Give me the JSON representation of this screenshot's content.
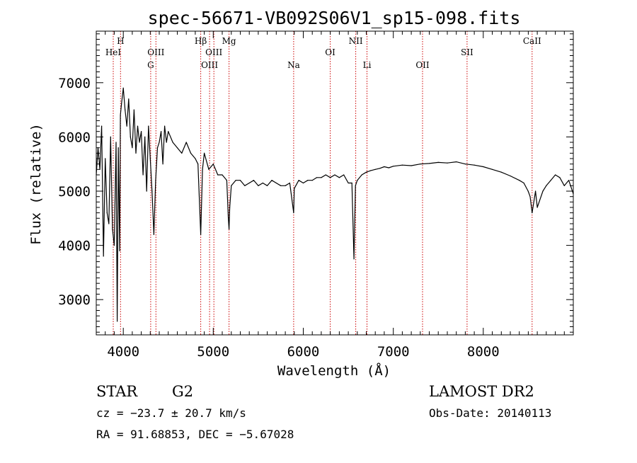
{
  "chart_data": {
    "type": "line",
    "title": "spec-56671-VB092S06V1_sp15-098.fits",
    "xlabel": "Wavelength (Å)",
    "ylabel": "Flux (relative)",
    "xlim": [
      3700,
      9000
    ],
    "ylim": [
      2350,
      7950
    ],
    "xticks": [
      4000,
      5000,
      6000,
      7000,
      8000
    ],
    "yticks": [
      3000,
      4000,
      5000,
      6000,
      7000
    ],
    "xtick_labels": [
      "4000",
      "5000",
      "6000",
      "7000",
      "8000"
    ],
    "ytick_labels": [
      "3000",
      "4000",
      "5000",
      "6000",
      "7000"
    ],
    "grid": false,
    "spectral_lines": [
      {
        "label": "HeI",
        "wavelength": 3889,
        "row": 2
      },
      {
        "label": "H",
        "wavelength": 3970,
        "row": 1
      },
      {
        "label": "G",
        "wavelength": 4305,
        "row": 3
      },
      {
        "label": "OIII",
        "wavelength": 4363,
        "row": 2
      },
      {
        "label": "Hβ",
        "wavelength": 4861,
        "row": 1
      },
      {
        "label": "OIII",
        "wavelength": 4959,
        "row": 3
      },
      {
        "label": "OIII",
        "wavelength": 5007,
        "row": 2
      },
      {
        "label": "Mg",
        "wavelength": 5175,
        "row": 1
      },
      {
        "label": "Na",
        "wavelength": 5893,
        "row": 3
      },
      {
        "label": "OI",
        "wavelength": 6300,
        "row": 2
      },
      {
        "label": "NII",
        "wavelength": 6583,
        "row": 1
      },
      {
        "label": "Li",
        "wavelength": 6708,
        "row": 3
      },
      {
        "label": "OII",
        "wavelength": 7325,
        "row": 3
      },
      {
        "label": "SII",
        "wavelength": 7820,
        "row": 2
      },
      {
        "label": "CaII",
        "wavelength": 8542,
        "row": 1
      }
    ],
    "series": [
      {
        "x": [
          3700,
          3720,
          3740,
          3760,
          3780,
          3800,
          3820,
          3840,
          3860,
          3880,
          3900,
          3920,
          3933,
          3945,
          3960,
          3968,
          3980,
          4000,
          4020,
          4040,
          4060,
          4080,
          4100,
          4120,
          4140,
          4160,
          4180,
          4200,
          4220,
          4240,
          4260,
          4280,
          4300,
          4320,
          4340,
          4360,
          4380,
          4400,
          4420,
          4440,
          4460,
          4480,
          4500,
          4550,
          4600,
          4650,
          4700,
          4750,
          4800,
          4830,
          4861,
          4880,
          4900,
          4950,
          5000,
          5050,
          5100,
          5150,
          5167,
          5175,
          5183,
          5200,
          5250,
          5300,
          5350,
          5400,
          5450,
          5500,
          5550,
          5600,
          5650,
          5700,
          5750,
          5800,
          5850,
          5893,
          5900,
          5950,
          6000,
          6050,
          6100,
          6150,
          6200,
          6250,
          6300,
          6350,
          6400,
          6450,
          6500,
          6540,
          6563,
          6580,
          6600,
          6650,
          6700,
          6750,
          6800,
          6850,
          6900,
          6950,
          7000,
          7100,
          7200,
          7300,
          7400,
          7500,
          7600,
          7700,
          7800,
          7900,
          8000,
          8100,
          8200,
          8300,
          8400,
          8450,
          8498,
          8520,
          8542,
          8580,
          8600,
          8662,
          8700,
          8750,
          8800,
          8850,
          8900,
          8950,
          9000
        ],
        "y": [
          5300,
          5800,
          5400,
          6200,
          3800,
          5600,
          4600,
          4400,
          6000,
          4300,
          4000,
          5900,
          2600,
          5800,
          3900,
          6400,
          6600,
          6900,
          6500,
          6200,
          6700,
          6000,
          5800,
          6500,
          5700,
          6200,
          5900,
          6100,
          5300,
          6000,
          5000,
          6200,
          5600,
          5000,
          4200,
          5200,
          5800,
          5900,
          6100,
          5500,
          6200,
          5900,
          6100,
          5900,
          5800,
          5700,
          5900,
          5700,
          5600,
          5500,
          4200,
          5400,
          5700,
          5400,
          5500,
          5300,
          5300,
          5200,
          4500,
          4300,
          4700,
          5100,
          5200,
          5200,
          5100,
          5150,
          5200,
          5100,
          5150,
          5100,
          5200,
          5150,
          5100,
          5100,
          5150,
          4600,
          5050,
          5200,
          5150,
          5200,
          5200,
          5250,
          5250,
          5300,
          5250,
          5300,
          5250,
          5300,
          5150,
          5150,
          3750,
          5100,
          5200,
          5300,
          5350,
          5380,
          5400,
          5420,
          5450,
          5430,
          5460,
          5480,
          5470,
          5500,
          5510,
          5530,
          5520,
          5540,
          5500,
          5480,
          5450,
          5400,
          5350,
          5280,
          5200,
          5150,
          5000,
          4900,
          4600,
          5000,
          4700,
          5000,
          5100,
          5200,
          5300,
          5250,
          5100,
          5200,
          4950
        ]
      }
    ]
  },
  "info": {
    "object_class": "STAR",
    "subclass": "G2",
    "survey": "LAMOST DR2",
    "redshift": "cz = −23.7 ± 20.7 km/s",
    "obs_date": "Obs-Date: 20140113",
    "coords": "RA =  91.68853, DEC =  −5.67028"
  }
}
